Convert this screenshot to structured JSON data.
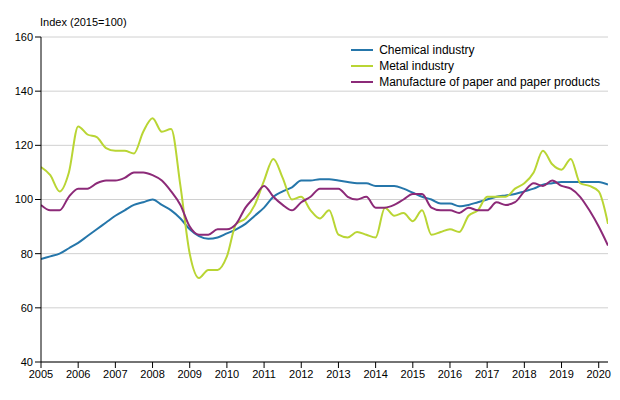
{
  "chart_data": {
    "type": "line",
    "y_label": "Index (2015=100)",
    "x": [
      2005,
      2005.25,
      2005.5,
      2005.75,
      2006,
      2006.25,
      2006.5,
      2006.75,
      2007,
      2007.25,
      2007.5,
      2007.75,
      2008,
      2008.25,
      2008.5,
      2008.75,
      2009,
      2009.25,
      2009.5,
      2009.75,
      2010,
      2010.25,
      2010.5,
      2010.75,
      2011,
      2011.25,
      2011.5,
      2011.75,
      2012,
      2012.25,
      2012.5,
      2012.75,
      2013,
      2013.25,
      2013.5,
      2013.75,
      2014,
      2014.25,
      2014.5,
      2014.75,
      2015,
      2015.25,
      2015.5,
      2015.75,
      2016,
      2016.25,
      2016.5,
      2016.75,
      2017,
      2017.25,
      2017.5,
      2017.75,
      2018,
      2018.25,
      2018.5,
      2018.75,
      2019,
      2019.25,
      2019.5,
      2019.75,
      2020,
      2020.25
    ],
    "series": [
      {
        "name": "Chemical industry",
        "color": "#2576aa",
        "values": [
          78,
          79,
          80,
          82,
          84,
          86.5,
          89,
          91.5,
          94,
          96,
          98,
          99,
          100,
          98,
          96,
          93,
          89,
          86.5,
          85.5,
          86,
          87.5,
          89,
          91,
          94,
          97,
          101,
          103,
          104.5,
          107,
          107,
          107.5,
          107.5,
          107,
          106.5,
          106,
          106,
          105,
          105,
          105,
          104,
          102.5,
          101,
          100,
          98.5,
          98.5,
          97.5,
          98,
          99,
          100,
          101,
          101.5,
          102,
          103,
          104,
          105.5,
          106,
          106.5,
          106.5,
          106.5,
          106.5,
          106.5,
          105.5
        ]
      },
      {
        "name": "Metal industry",
        "color": "#b9d534",
        "values": [
          112,
          109,
          103,
          110,
          127,
          124,
          123,
          119,
          118,
          118,
          117,
          125,
          130,
          125,
          126,
          105,
          80,
          71,
          74,
          74,
          79,
          91,
          93,
          98,
          107,
          115,
          108,
          100,
          101,
          96,
          93,
          96,
          87,
          86,
          88,
          87,
          86,
          97,
          94,
          95,
          92,
          96,
          87,
          88,
          89,
          88,
          94,
          96,
          101,
          101,
          101,
          104,
          106,
          110,
          118,
          113,
          111,
          115,
          106,
          105,
          103,
          91
        ]
      },
      {
        "name": "Manufacture of paper and paper products",
        "color": "#8c2a78",
        "values": [
          98,
          96,
          96,
          101,
          104,
          104,
          106,
          107,
          107,
          108,
          110,
          110,
          109,
          107,
          103,
          98,
          90,
          87,
          87,
          89,
          89,
          91,
          97,
          101,
          105,
          101,
          98,
          96,
          99,
          101,
          104,
          104,
          104,
          101,
          100,
          101,
          97,
          97,
          98,
          100,
          102,
          102,
          97,
          96,
          96,
          95,
          97,
          96,
          96,
          99,
          98,
          99,
          103,
          106,
          105,
          107,
          105,
          104,
          101,
          96,
          90,
          83
        ]
      }
    ],
    "xlim": [
      2005,
      2020.25
    ],
    "xticks": [
      2005,
      2006,
      2007,
      2008,
      2009,
      2010,
      2011,
      2012,
      2013,
      2014,
      2015,
      2016,
      2017,
      2018,
      2019,
      2020
    ],
    "ylim": [
      40,
      160
    ],
    "yticks": [
      40,
      60,
      80,
      100,
      120,
      140,
      160
    ],
    "grid": true,
    "legend": "upper right"
  }
}
